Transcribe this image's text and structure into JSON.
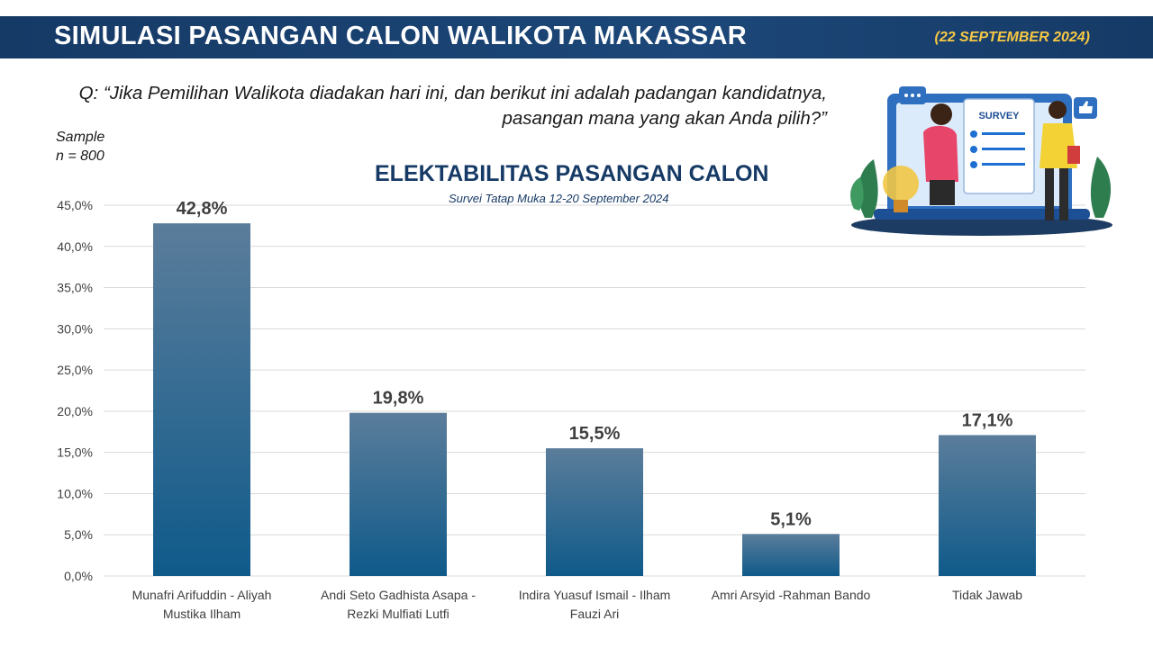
{
  "header": {
    "title": "SIMULASI PASANGAN CALON WALIKOTA MAKASSAR",
    "date": "(22 SEPTEMBER 2024)"
  },
  "question": {
    "line1": "Q: “Jika Pemilihan Walikota diadakan hari ini, dan berikut ini adalah padangan kandidatnya,",
    "line2": "pasangan mana yang akan Anda pilih?”"
  },
  "sample": {
    "label": "Sample",
    "n": "n = 800"
  },
  "illustration": {
    "survey_label": "SURVEY",
    "icons": [
      "chat-bubble-icon",
      "thumbs-up-icon",
      "lightbulb-icon",
      "checklist-icon"
    ]
  },
  "colors": {
    "header_bg": "#1c4778",
    "header_accent": "#f6c744",
    "bar_top": "#5b7d9b",
    "bar_bottom": "#0f5a8a",
    "title_color": "#163a66"
  },
  "chart_data": {
    "type": "bar",
    "title": "ELEKTABILITAS PASANGAN CALON",
    "subtitle": "Survei Tatap Muka 12-20 September 2024",
    "categories": [
      [
        "Munafri Arifuddin - Aliyah",
        "Mustika Ilham"
      ],
      [
        "Andi Seto Gadhista Asapa -",
        "Rezki Mulfiati Lutfi"
      ],
      [
        "Indira Yuasuf Ismail - Ilham",
        "Fauzi Ari"
      ],
      [
        "Amri Arsyid -Rahman Bando"
      ],
      [
        "Tidak Jawab"
      ]
    ],
    "values": [
      42.8,
      19.8,
      15.5,
      5.1,
      17.1
    ],
    "data_labels": [
      "42,8%",
      "19,8%",
      "15,5%",
      "5,1%",
      "17,1%"
    ],
    "ylim": [
      0,
      45
    ],
    "yticks": [
      0,
      5,
      10,
      15,
      20,
      25,
      30,
      35,
      40,
      45
    ],
    "ytick_labels": [
      "0,0%",
      "5,0%",
      "10,0%",
      "15,0%",
      "20,0%",
      "25,0%",
      "30,0%",
      "35,0%",
      "40,0%",
      "45,0%"
    ],
    "grid": true,
    "xlabel": "",
    "ylabel": ""
  }
}
